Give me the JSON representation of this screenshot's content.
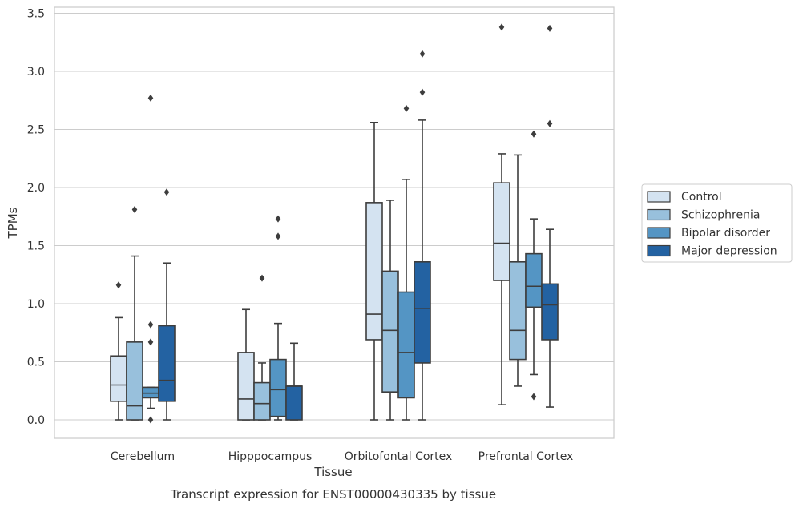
{
  "chart_data": {
    "type": "box",
    "xlabel": "Tissue",
    "ylabel": "TPMs",
    "caption": "Transcript expression for ENST00000430335 by tissue",
    "ylim": [
      -0.16,
      3.56
    ],
    "yticks": [
      0.0,
      0.5,
      1.0,
      1.5,
      2.0,
      2.5,
      3.0,
      3.5
    ],
    "ytick_labels": [
      "0.0",
      "0.5",
      "1.0",
      "1.5",
      "2.0",
      "2.5",
      "3.0",
      "3.5"
    ],
    "grid": "horizontal",
    "legend_position": "right",
    "categories": [
      "Cerebellum",
      "Hipppocampus",
      "Orbitofontal Cortex",
      "Prefrontal Cortex"
    ],
    "series": [
      {
        "name": "Control",
        "color": "#d4e3f1",
        "boxes": [
          {
            "whislo": 0.0,
            "q1": 0.16,
            "med": 0.3,
            "q3": 0.55,
            "whishi": 0.88,
            "fliers": [
              1.16
            ]
          },
          {
            "whislo": 0.0,
            "q1": 0.0,
            "med": 0.18,
            "q3": 0.58,
            "whishi": 0.95,
            "fliers": []
          },
          {
            "whislo": 0.0,
            "q1": 0.69,
            "med": 0.91,
            "q3": 1.87,
            "whishi": 2.56,
            "fliers": []
          },
          {
            "whislo": 0.13,
            "q1": 1.2,
            "med": 1.52,
            "q3": 2.04,
            "whishi": 2.29,
            "fliers": [
              3.38
            ]
          }
        ]
      },
      {
        "name": "Schizophrenia",
        "color": "#98c0dc",
        "boxes": [
          {
            "whislo": 0.0,
            "q1": 0.0,
            "med": 0.12,
            "q3": 0.67,
            "whishi": 1.41,
            "fliers": [
              1.81
            ]
          },
          {
            "whislo": 0.0,
            "q1": 0.0,
            "med": 0.14,
            "q3": 0.32,
            "whishi": 0.49,
            "fliers": [
              1.22
            ]
          },
          {
            "whislo": 0.0,
            "q1": 0.24,
            "med": 0.77,
            "q3": 1.28,
            "whishi": 1.89,
            "fliers": []
          },
          {
            "whislo": 0.29,
            "q1": 0.52,
            "med": 0.77,
            "q3": 1.36,
            "whishi": 2.28,
            "fliers": []
          }
        ]
      },
      {
        "name": "Bipolar disorder",
        "color": "#5495c4",
        "boxes": [
          {
            "whislo": 0.1,
            "q1": 0.19,
            "med": 0.23,
            "q3": 0.28,
            "whishi": 0.28,
            "fliers": [
              0.0,
              0.67,
              0.82,
              2.77
            ]
          },
          {
            "whislo": 0.0,
            "q1": 0.03,
            "med": 0.26,
            "q3": 0.52,
            "whishi": 0.83,
            "fliers": [
              1.58,
              1.73
            ]
          },
          {
            "whislo": 0.0,
            "q1": 0.19,
            "med": 0.58,
            "q3": 1.1,
            "whishi": 2.07,
            "fliers": [
              2.68
            ]
          },
          {
            "whislo": 0.39,
            "q1": 0.97,
            "med": 1.15,
            "q3": 1.43,
            "whishi": 1.73,
            "fliers": [
              0.2,
              2.46
            ]
          }
        ]
      },
      {
        "name": "Major depression",
        "color": "#2362a2",
        "boxes": [
          {
            "whislo": 0.0,
            "q1": 0.16,
            "med": 0.34,
            "q3": 0.81,
            "whishi": 1.35,
            "fliers": [
              1.96
            ]
          },
          {
            "whislo": 0.0,
            "q1": 0.0,
            "med": 0.29,
            "q3": 0.29,
            "whishi": 0.66,
            "fliers": []
          },
          {
            "whislo": 0.0,
            "q1": 0.49,
            "med": 0.96,
            "q3": 1.36,
            "whishi": 2.58,
            "fliers": [
              2.82,
              3.15
            ]
          },
          {
            "whislo": 0.11,
            "q1": 0.69,
            "med": 0.99,
            "q3": 1.17,
            "whishi": 1.64,
            "fliers": [
              2.55,
              3.37
            ]
          }
        ]
      }
    ]
  }
}
